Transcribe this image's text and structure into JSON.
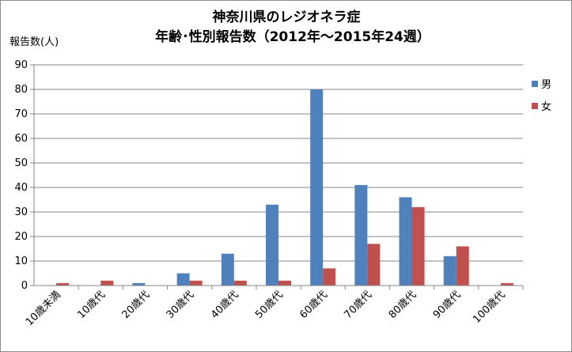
{
  "chart_data": {
    "type": "bar",
    "title": "神奈川県のレジオネラ症",
    "subtitle": "年齢･性別報告数（2012年～2015年24週）",
    "ylabel": "報告数(人)",
    "xlabel": "",
    "ylim": [
      0,
      90
    ],
    "yticks": [
      0,
      10,
      20,
      30,
      40,
      50,
      60,
      70,
      80,
      90
    ],
    "grid": true,
    "legend_position": "right",
    "categories": [
      "10歳未満",
      "10歳代",
      "20歳代",
      "30歳代",
      "40歳代",
      "50歳代",
      "60歳代",
      "70歳代",
      "80歳代",
      "90歳代",
      "100歳代"
    ],
    "series": [
      {
        "name": "男",
        "color": "#4f81bd",
        "values": [
          0,
          0,
          1,
          5,
          13,
          33,
          80,
          41,
          36,
          12,
          0
        ]
      },
      {
        "name": "女",
        "color": "#c0504d",
        "values": [
          1,
          2,
          0,
          2,
          2,
          2,
          7,
          17,
          32,
          16,
          1
        ]
      }
    ]
  }
}
